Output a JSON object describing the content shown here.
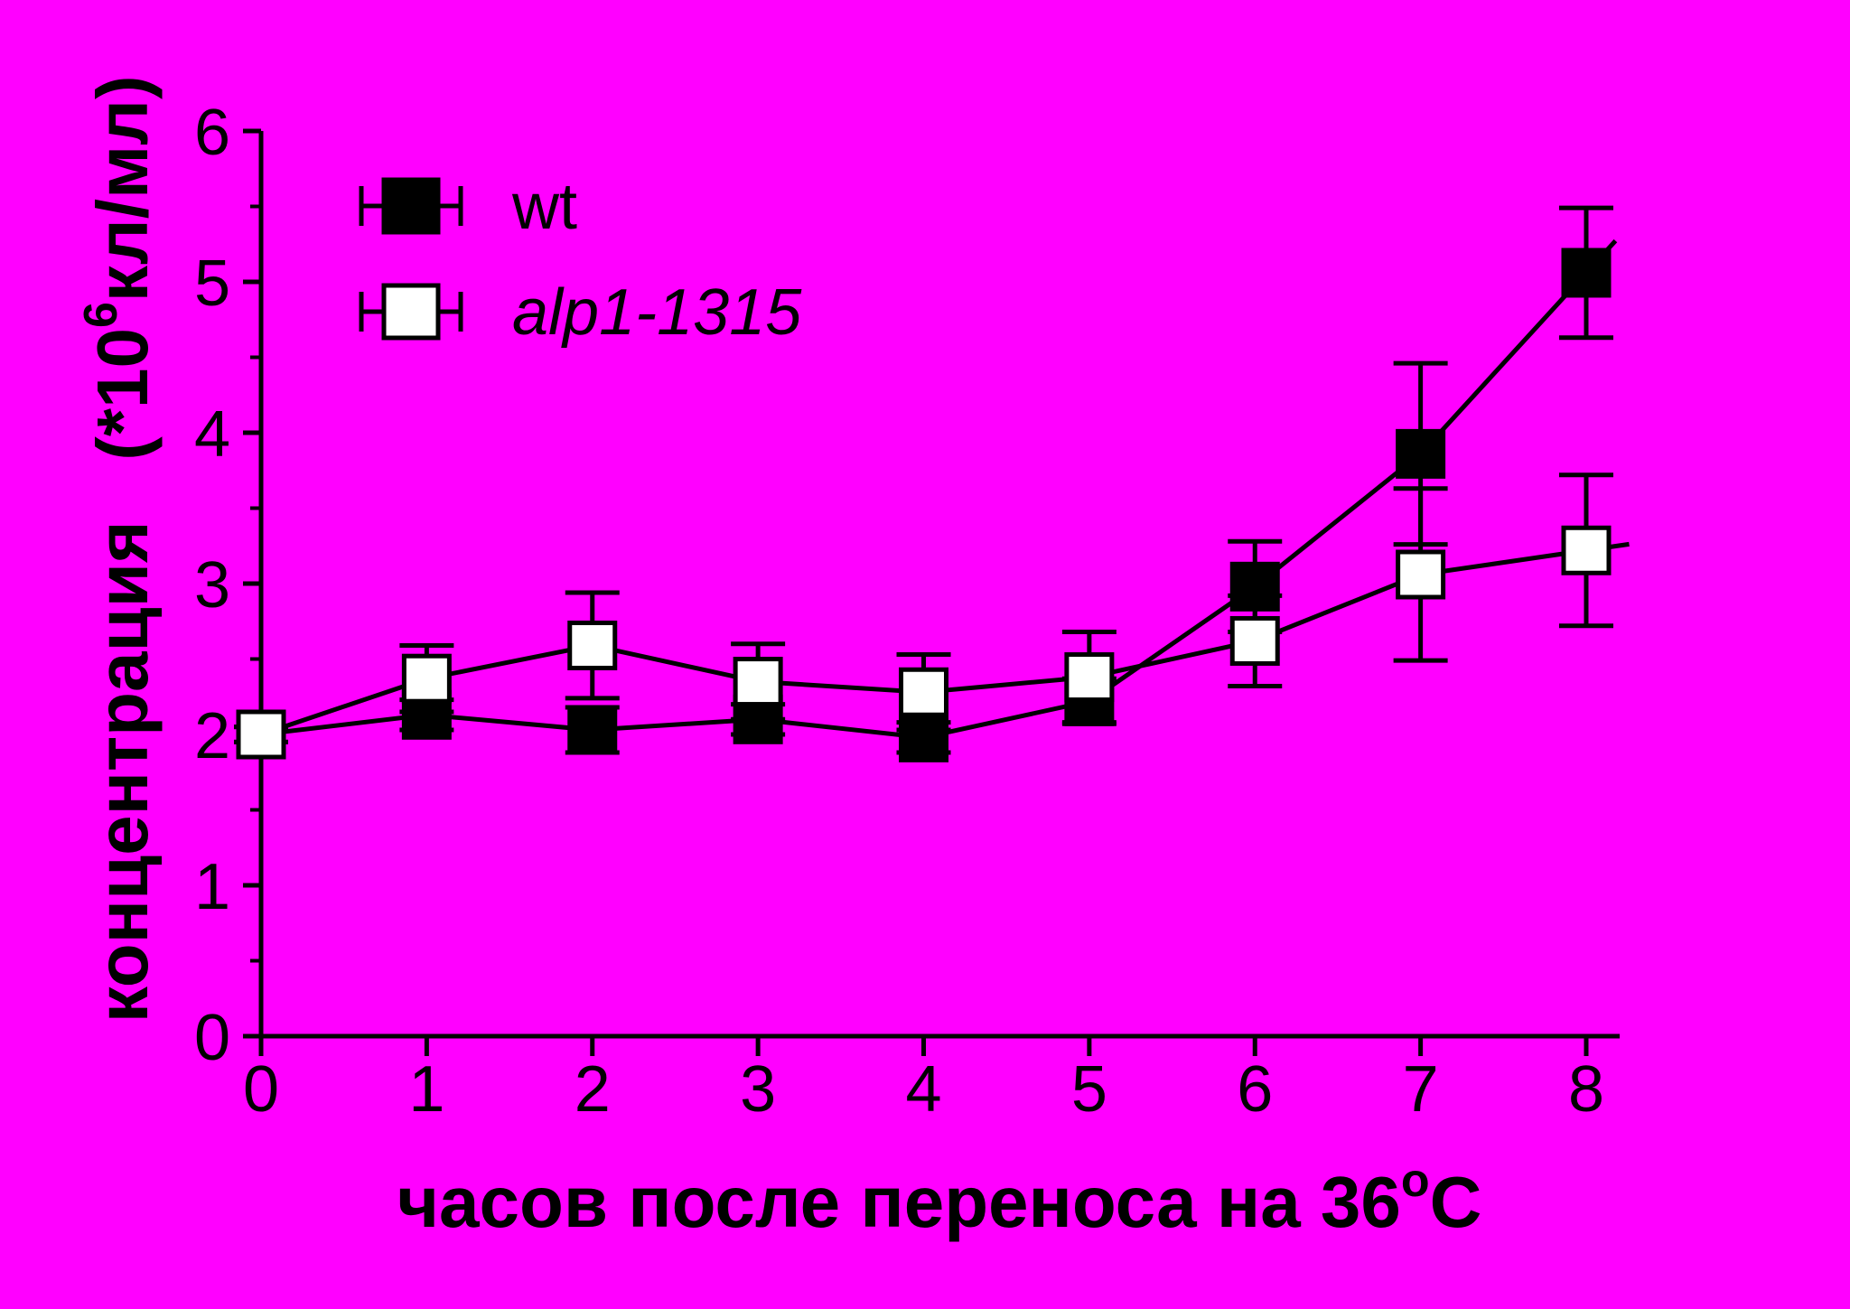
{
  "colors": {
    "background": "#FF00FF",
    "ink": "#000000",
    "open_marker_fill": "#FFFFFF"
  },
  "chart_data": {
    "type": "line",
    "title": "",
    "xlabel": "часов после переноса на 36°C",
    "xlabel_parts": {
      "main": "часов после переноса на 36",
      "sup": "o",
      "tail": "C"
    },
    "ylabel": "концентрация   (*10⁶кл/мл)",
    "ylabel_parts": {
      "main": "концентрация   (*10",
      "sup": "6",
      "tail": "кл/мл)"
    },
    "x": [
      0,
      1,
      2,
      3,
      4,
      5,
      6,
      7,
      8
    ],
    "xlim": [
      0,
      8
    ],
    "ylim": [
      0,
      6
    ],
    "x_ticks": [
      "0",
      "1",
      "2",
      "3",
      "4",
      "5",
      "6",
      "7",
      "8"
    ],
    "y_ticks": [
      "0",
      "1",
      "2",
      "3",
      "4",
      "5",
      "6"
    ],
    "y_minor_step": 0.5,
    "grid": false,
    "legend_position": "top-left",
    "series": [
      {
        "name": "wt",
        "marker": "filled-square",
        "italic": false,
        "values": [
          2.0,
          2.13,
          2.03,
          2.1,
          1.98,
          2.22,
          2.98,
          3.86,
          5.06
        ],
        "errors": [
          0.05,
          0.1,
          0.15,
          0.1,
          0.1,
          0.15,
          0.3,
          0.6,
          0.43
        ]
      },
      {
        "name": "alp1-1315",
        "marker": "open-square",
        "italic": true,
        "values": [
          2.0,
          2.37,
          2.59,
          2.35,
          2.28,
          2.38,
          2.62,
          3.06,
          3.22
        ],
        "errors": [
          0.05,
          0.22,
          0.35,
          0.25,
          0.25,
          0.3,
          0.3,
          0.57,
          0.5
        ]
      }
    ]
  }
}
